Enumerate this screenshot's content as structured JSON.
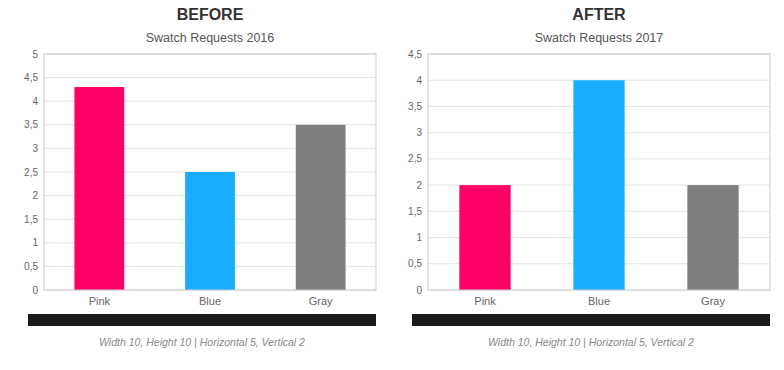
{
  "chart_data": [
    {
      "type": "bar",
      "title": "BEFORE",
      "subtitle": "Swatch Requests 2016",
      "categories": [
        "Pink",
        "Blue",
        "Gray"
      ],
      "values": [
        4.3,
        2.5,
        3.5
      ],
      "colors": [
        "#FF0066",
        "#1AADFF",
        "#7F7F7F"
      ],
      "ylim": [
        0,
        5
      ],
      "yticks": [
        0,
        {
          "value": 0.5,
          "label": "0,5"
        },
        1,
        {
          "value": 1.5,
          "label": "1,5"
        },
        2,
        {
          "value": 2.5,
          "label": "2,5"
        },
        3,
        {
          "value": 3.5,
          "label": "3,5"
        },
        4,
        {
          "value": 4.5,
          "label": "4,5"
        },
        5
      ],
      "grid": true,
      "annotations": [
        "Width 10, Height 10  |  Horizontal 5, Vertical 2"
      ]
    },
    {
      "type": "bar",
      "title": "AFTER",
      "subtitle": "Swatch Requests 2017",
      "categories": [
        "Pink",
        "Blue",
        "Gray"
      ],
      "values": [
        2.0,
        4.0,
        2.0
      ],
      "colors": [
        "#FF0066",
        "#1AADFF",
        "#7F7F7F"
      ],
      "ylim": [
        0,
        4.5
      ],
      "yticks": [
        0,
        {
          "value": 0.5,
          "label": "0,5"
        },
        1,
        {
          "value": 1.5,
          "label": "1,5"
        },
        2,
        {
          "value": 2.5,
          "label": "2,5"
        },
        3,
        {
          "value": 3.5,
          "label": "3,5"
        },
        4,
        {
          "value": 4.5,
          "label": "4,5"
        }
      ],
      "grid": true,
      "annotations": [
        "Width 10, Height 10  |  Horizontal 5, Vertical 2"
      ]
    }
  ]
}
